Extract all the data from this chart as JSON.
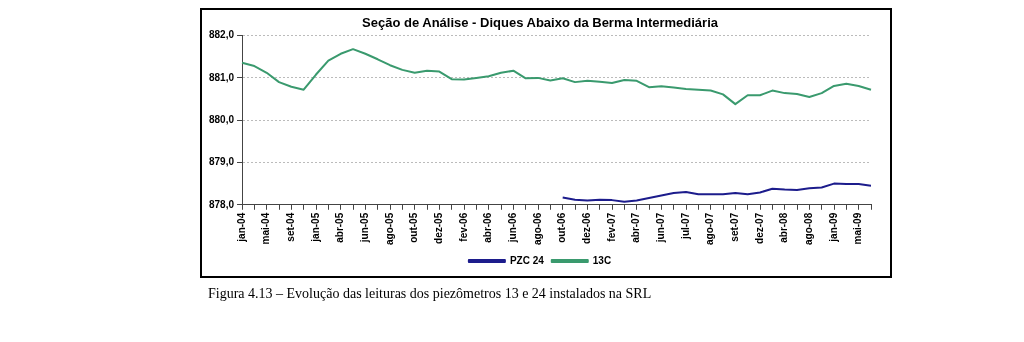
{
  "chart_data": {
    "type": "line",
    "title": "Seção de Análise - Diques Abaixo da Berma Intermediária",
    "categories": [
      "jan-04",
      null,
      "mai-04",
      null,
      "set-04",
      null,
      "jan-05",
      null,
      "abr-05",
      null,
      "jun-05",
      null,
      "ago-05",
      null,
      "out-05",
      null,
      "dez-05",
      null,
      "fev-06",
      null,
      "abr-06",
      null,
      "jun-06",
      null,
      "ago-06",
      null,
      "out-06",
      null,
      "dez-06",
      null,
      "fev-07",
      null,
      "abr-07",
      null,
      "jun-07",
      null,
      "jul-07",
      null,
      "ago-07",
      null,
      "set-07",
      null,
      "dez-07",
      null,
      "abr-08",
      null,
      "ago-08",
      null,
      "jan-09",
      null,
      "mai-09",
      null
    ],
    "series": [
      {
        "name": "PZC 24",
        "color": "#1c1c8c",
        "values": [
          null,
          null,
          null,
          null,
          null,
          null,
          null,
          null,
          null,
          null,
          null,
          null,
          null,
          null,
          null,
          null,
          null,
          null,
          null,
          null,
          null,
          null,
          null,
          null,
          null,
          null,
          878.17,
          878.12,
          878.1,
          878.12,
          878.11,
          878.07,
          878.1,
          878.16,
          878.22,
          878.28,
          878.3,
          878.25,
          878.25,
          878.25,
          878.28,
          878.25,
          878.29,
          878.38,
          878.36,
          878.35,
          878.39,
          878.41,
          878.5,
          878.49,
          878.49,
          878.45
        ]
      },
      {
        "name": "13C",
        "color": "#3a9a6e",
        "values": [
          881.36,
          881.28,
          881.12,
          880.9,
          880.79,
          880.72,
          881.08,
          881.41,
          881.57,
          881.68,
          881.57,
          881.44,
          881.3,
          881.19,
          881.12,
          881.17,
          881.15,
          880.97,
          880.96,
          881.0,
          881.04,
          881.12,
          881.17,
          880.99,
          881.0,
          880.94,
          880.99,
          880.9,
          880.93,
          880.91,
          880.88,
          880.95,
          880.93,
          880.78,
          880.8,
          880.77,
          880.74,
          880.72,
          880.7,
          880.61,
          880.38,
          880.59,
          880.59,
          880.7,
          880.64,
          880.62,
          880.55,
          880.64,
          880.81,
          880.86,
          880.81,
          880.72
        ]
      }
    ],
    "ylim": [
      878,
      882
    ],
    "yticks": [
      {
        "value": 878,
        "label": "878,0"
      },
      {
        "value": 879,
        "label": "879,0"
      },
      {
        "value": 880,
        "label": "880,0"
      },
      {
        "value": 881,
        "label": "881,0"
      },
      {
        "value": 882,
        "label": "882,0"
      }
    ],
    "grid": "y",
    "legend": "bottom",
    "marker": "none",
    "line_style": "solid",
    "annotations": [
      "Figura 4.13 – Evolução das leituras dos piezômetros 13 e 24 instalados na SRL"
    ]
  }
}
